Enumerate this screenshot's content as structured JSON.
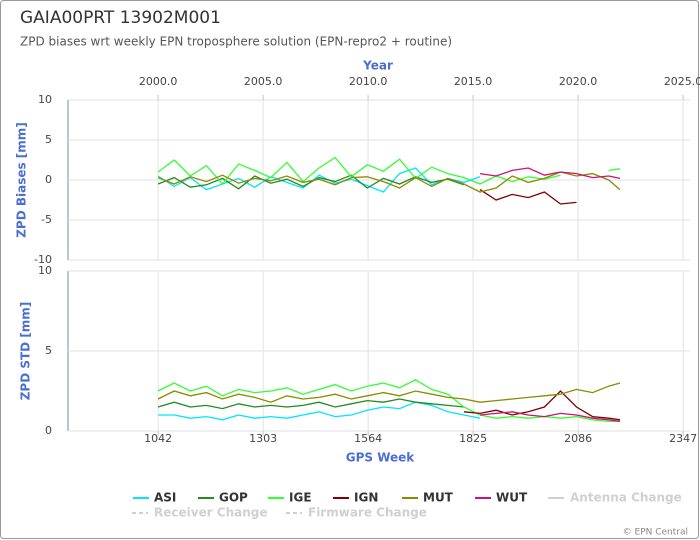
{
  "header": {
    "title": "GAIA00PRT 13902M001",
    "subtitle": "ZPD biases wrt weekly EPN troposphere solution (EPN-repro2 + routine)"
  },
  "footer": {
    "credit": "© EPN Central"
  },
  "legend_extra": [
    {
      "name": "Antenna Change",
      "color": "#d0d0d0",
      "dashed": false
    },
    {
      "name": "Receiver Change",
      "color": "#d0d0d0",
      "dashed": true
    },
    {
      "name": "Firmware Change",
      "color": "#d0d0d0",
      "dashed": true
    }
  ],
  "chart_data": [
    {
      "type": "line",
      "ylabel": "ZPD Biases [mm]",
      "x2label": "Year",
      "xlim": [
        818,
        2364
      ],
      "x2lim": [
        1995.71,
        2025.33
      ],
      "x2ticks": [
        {
          "value": 2000,
          "label": "2000.0"
        },
        {
          "value": 2005,
          "label": "2005.0"
        },
        {
          "value": 2010,
          "label": "2010.0"
        },
        {
          "value": 2015,
          "label": "2015.0"
        },
        {
          "value": 2020,
          "label": "2020.0"
        },
        {
          "value": 2025,
          "label": "2025.0"
        }
      ],
      "ylim": [
        -10,
        10
      ],
      "yticks": [
        -10,
        -5,
        0,
        5,
        10
      ],
      "grid": true,
      "x": [
        1042,
        1082,
        1122,
        1162,
        1202,
        1242,
        1282,
        1322,
        1362,
        1402,
        1442,
        1482,
        1522,
        1562,
        1602,
        1642,
        1682,
        1722,
        1762,
        1802,
        1842,
        1882,
        1922,
        1962,
        2002,
        2042,
        2082,
        2122,
        2162,
        2190
      ],
      "series": [
        {
          "name": "ASI",
          "color": "#00e5ff",
          "values": [
            0.5,
            -0.8,
            0.3,
            -1.2,
            -0.5,
            0.2,
            -0.9,
            0.4,
            -0.3,
            -1,
            0.6,
            -0.4,
            0.1,
            -0.7,
            -1.5,
            0.8,
            1.5,
            -0.6,
            0.2,
            -0.3,
            0.4,
            null,
            null,
            null,
            null,
            null,
            null,
            null,
            null,
            null
          ]
        },
        {
          "name": "GOP",
          "color": "#228b22",
          "values": [
            -0.5,
            0.3,
            -0.9,
            -0.6,
            0.2,
            -1.1,
            0.5,
            -0.4,
            0.1,
            -0.8,
            0.3,
            -0.2,
            0.6,
            -1,
            0.2,
            -0.5,
            0.4,
            -0.3,
            0.1,
            -0.6,
            null,
            null,
            null,
            null,
            null,
            null,
            null,
            null,
            null,
            null
          ]
        },
        {
          "name": "IGE",
          "color": "#33ff33",
          "values": [
            1,
            2.5,
            0.5,
            1.8,
            -0.5,
            2,
            1.2,
            0.3,
            2.2,
            -0.2,
            1.5,
            2.8,
            0.4,
            1.9,
            1.1,
            2.6,
            0.2,
            1.6,
            0.8,
            0.3,
            -0.5,
            0.5,
            -0.2,
            0.4,
            0.1,
            0.6,
            null,
            null,
            1.2,
            1.4
          ]
        },
        {
          "name": "IGN",
          "color": "#800000",
          "values": [
            null,
            null,
            null,
            null,
            null,
            null,
            null,
            null,
            null,
            null,
            null,
            null,
            null,
            null,
            null,
            null,
            null,
            null,
            null,
            null,
            -1.2,
            -2.5,
            -1.8,
            -2.2,
            -1.5,
            -3,
            -2.8,
            null,
            null,
            null
          ]
        },
        {
          "name": "MUT",
          "color": "#8b8b00",
          "values": [
            0.3,
            -0.5,
            0.4,
            -0.2,
            0.6,
            -0.4,
            0.2,
            -0.1,
            0.5,
            -0.3,
            0.1,
            -0.6,
            0.3,
            0.4,
            -0.2,
            -1,
            0.3,
            -0.8,
            0.2,
            -0.5,
            -1.5,
            -1,
            0.5,
            -0.3,
            0.2,
            1,
            0.5,
            0.8,
            0,
            -1.2
          ]
        },
        {
          "name": "WUT",
          "color": "#cc1177",
          "values": [
            null,
            null,
            null,
            null,
            null,
            null,
            null,
            null,
            null,
            null,
            null,
            null,
            null,
            null,
            null,
            null,
            null,
            null,
            null,
            null,
            0.8,
            0.5,
            1.2,
            1.5,
            0.6,
            1,
            0.8,
            0.3,
            0.5,
            0.2
          ]
        }
      ]
    },
    {
      "type": "line",
      "ylabel": "ZPD STD [mm]",
      "xlabel": "GPS Week",
      "xlim": [
        818,
        2364
      ],
      "xticks": [
        1042,
        1303,
        1564,
        1825,
        2086,
        2347
      ],
      "ylim": [
        0,
        10
      ],
      "yticks": [
        0,
        5,
        10
      ],
      "grid": true,
      "x": [
        1042,
        1082,
        1122,
        1162,
        1202,
        1242,
        1282,
        1322,
        1362,
        1402,
        1442,
        1482,
        1522,
        1562,
        1602,
        1642,
        1682,
        1722,
        1762,
        1802,
        1842,
        1882,
        1922,
        1962,
        2002,
        2042,
        2082,
        2122,
        2162,
        2190
      ],
      "series": [
        {
          "name": "ASI",
          "color": "#00e5ff",
          "values": [
            1,
            1,
            0.8,
            0.9,
            0.7,
            1,
            0.8,
            0.9,
            0.8,
            1,
            1.2,
            0.9,
            1,
            1.3,
            1.5,
            1.4,
            1.8,
            1.6,
            1.2,
            1,
            0.8,
            null,
            null,
            null,
            null,
            null,
            null,
            null,
            null,
            null
          ]
        },
        {
          "name": "GOP",
          "color": "#228b22",
          "values": [
            1.5,
            1.8,
            1.5,
            1.6,
            1.4,
            1.7,
            1.5,
            1.6,
            1.5,
            1.6,
            1.8,
            1.5,
            1.7,
            1.9,
            1.8,
            2,
            1.8,
            1.7,
            1.6,
            1.5,
            null,
            null,
            null,
            null,
            null,
            null,
            null,
            null,
            null,
            null
          ]
        },
        {
          "name": "IGE",
          "color": "#33ff33",
          "values": [
            2.5,
            3,
            2.5,
            2.8,
            2.2,
            2.6,
            2.4,
            2.5,
            2.7,
            2.3,
            2.6,
            2.9,
            2.5,
            2.8,
            3,
            2.7,
            3.2,
            2.6,
            2.3,
            1.5,
            1,
            0.8,
            0.9,
            0.8,
            0.9,
            0.8,
            0.9,
            0.7,
            0.6,
            0.6
          ]
        },
        {
          "name": "IGN",
          "color": "#800000",
          "values": [
            null,
            null,
            null,
            null,
            null,
            null,
            null,
            null,
            null,
            null,
            null,
            null,
            null,
            null,
            null,
            null,
            null,
            null,
            null,
            1.2,
            1.1,
            1.3,
            1,
            1.2,
            1.5,
            2.5,
            1.5,
            0.9,
            0.8,
            0.7
          ]
        },
        {
          "name": "MUT",
          "color": "#8b8b00",
          "values": [
            2,
            2.5,
            2.2,
            2.4,
            2,
            2.3,
            2.1,
            1.8,
            2.2,
            2,
            2.1,
            2.3,
            2,
            2.2,
            2.4,
            2.2,
            2.5,
            2.3,
            2.1,
            2,
            1.8,
            1.9,
            2,
            2.1,
            2.2,
            2.3,
            2.6,
            2.4,
            2.8,
            3
          ]
        },
        {
          "name": "WUT",
          "color": "#cc1177",
          "values": [
            null,
            null,
            null,
            null,
            null,
            null,
            null,
            null,
            null,
            null,
            null,
            null,
            null,
            null,
            null,
            null,
            null,
            null,
            null,
            null,
            1,
            1.1,
            1.2,
            1,
            0.9,
            1.1,
            1,
            0.8,
            0.7,
            0.6
          ]
        }
      ]
    }
  ]
}
